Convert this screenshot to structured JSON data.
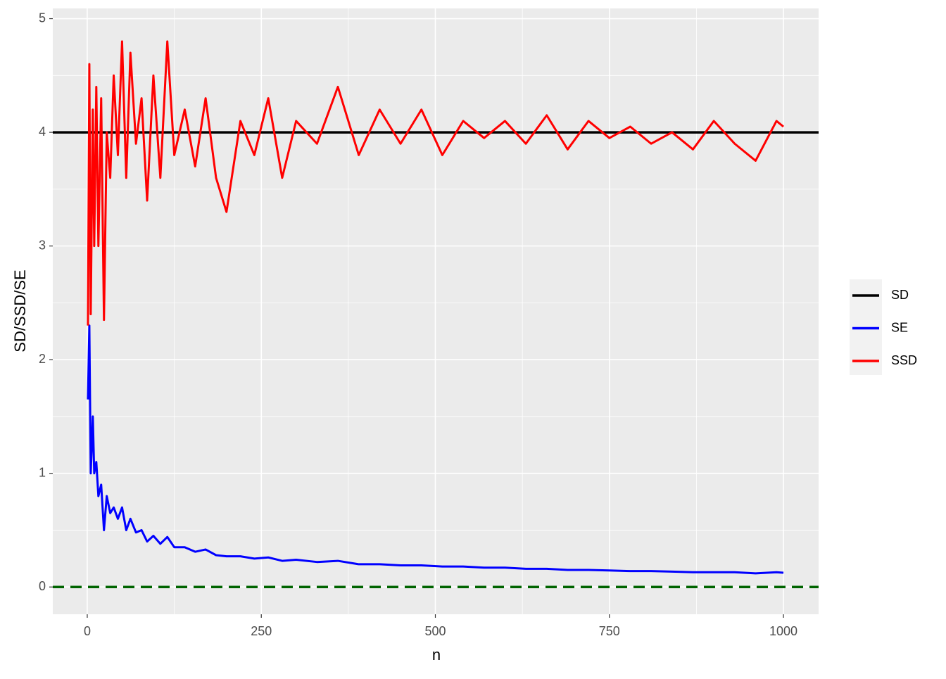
{
  "chart_data": {
    "type": "line",
    "x_label": "n",
    "y_label": "SD/SSD/SE",
    "xlim": [
      -49.5,
      1050.5
    ],
    "ylim": [
      -0.24,
      5.09
    ],
    "xticks": [
      0,
      250,
      500,
      750,
      1000
    ],
    "yticks": [
      0,
      1,
      2,
      3,
      4,
      5
    ],
    "xminorticks": [
      125,
      375,
      625,
      875
    ],
    "yminorticks": [
      0.5,
      1.5,
      2.5,
      3.5,
      4.5
    ],
    "grid": true,
    "legend": "right",
    "x": [
      1,
      3,
      5,
      8,
      10,
      13,
      16,
      20,
      24,
      28,
      33,
      38,
      44,
      50,
      56,
      62,
      70,
      78,
      86,
      95,
      105,
      115,
      125,
      140,
      155,
      170,
      185,
      200,
      220,
      240,
      260,
      280,
      300,
      330,
      360,
      390,
      420,
      450,
      480,
      510,
      540,
      570,
      600,
      630,
      660,
      690,
      720,
      750,
      780,
      810,
      840,
      870,
      900,
      930,
      960,
      990,
      1000
    ],
    "series": [
      {
        "name": "SD",
        "color": "#000000",
        "hline": 4
      },
      {
        "name": "SE",
        "color": "#0000ff",
        "values": [
          1.65,
          2.3,
          1.0,
          1.5,
          1.0,
          1.1,
          0.8,
          0.9,
          0.5,
          0.8,
          0.65,
          0.7,
          0.6,
          0.7,
          0.5,
          0.6,
          0.48,
          0.5,
          0.4,
          0.45,
          0.38,
          0.44,
          0.35,
          0.35,
          0.31,
          0.33,
          0.28,
          0.27,
          0.27,
          0.25,
          0.26,
          0.23,
          0.24,
          0.22,
          0.23,
          0.2,
          0.2,
          0.19,
          0.19,
          0.18,
          0.18,
          0.17,
          0.17,
          0.16,
          0.16,
          0.15,
          0.15,
          0.145,
          0.14,
          0.14,
          0.135,
          0.13,
          0.13,
          0.13,
          0.12,
          0.13,
          0.125
        ]
      },
      {
        "name": "SSD",
        "color": "#ff0000",
        "values": [
          2.3,
          4.6,
          2.4,
          4.2,
          3.0,
          4.4,
          3.0,
          4.3,
          2.35,
          4.0,
          3.6,
          4.5,
          3.8,
          4.8,
          3.6,
          4.7,
          3.9,
          4.3,
          3.4,
          4.5,
          3.6,
          4.8,
          3.8,
          4.2,
          3.7,
          4.3,
          3.6,
          3.3,
          4.1,
          3.8,
          4.3,
          3.6,
          4.1,
          3.9,
          4.4,
          3.8,
          4.2,
          3.9,
          4.2,
          3.8,
          4.1,
          3.95,
          4.1,
          3.9,
          4.15,
          3.85,
          4.1,
          3.95,
          4.05,
          3.9,
          4.0,
          3.85,
          4.1,
          3.9,
          3.75,
          4.1,
          4.05
        ]
      }
    ],
    "hlines": [
      {
        "value": 0,
        "color": "#006400",
        "dashed": true
      }
    ]
  }
}
